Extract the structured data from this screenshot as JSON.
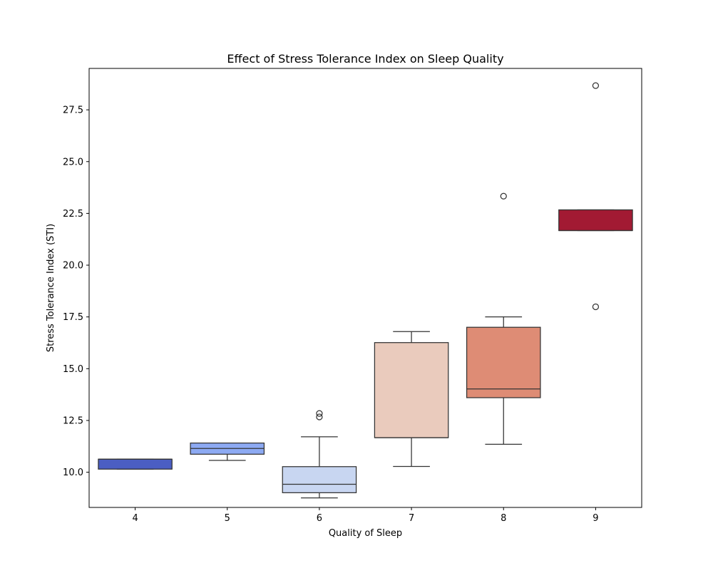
{
  "chart_data": {
    "type": "box",
    "title": "Effect of Stress Tolerance Index on Sleep Quality",
    "xlabel": "Quality of Sleep",
    "ylabel": "Stress Tolerance Index (STI)",
    "ylim": [
      8.3,
      29.5
    ],
    "yticks": [
      "10.0",
      "12.5",
      "15.0",
      "17.5",
      "20.0",
      "22.5",
      "25.0",
      "27.5"
    ],
    "grid": false,
    "categories": [
      "4",
      "5",
      "6",
      "7",
      "8",
      "9"
    ],
    "boxes": [
      {
        "category": "4",
        "whislo": 10.15,
        "q1": 10.15,
        "med": 10.63,
        "q3": 10.63,
        "whishi": 10.63,
        "fliers": [],
        "color": "#4b5ec3"
      },
      {
        "category": "5",
        "whislo": 10.57,
        "q1": 10.87,
        "med": 11.15,
        "q3": 11.41,
        "whishi": 11.41,
        "fliers": [],
        "color": "#8daaf3"
      },
      {
        "category": "6",
        "whislo": 8.76,
        "q1": 9.01,
        "med": 9.42,
        "q3": 10.27,
        "whishi": 11.71,
        "fliers": [
          12.67,
          12.84
        ],
        "color": "#c8d6f1"
      },
      {
        "category": "7",
        "whislo": 10.28,
        "q1": 11.67,
        "med": 11.67,
        "q3": 16.26,
        "whishi": 16.79,
        "fliers": [],
        "color": "#eacbbd"
      },
      {
        "category": "8",
        "whislo": 11.35,
        "q1": 13.6,
        "med": 14.02,
        "q3": 17.0,
        "whishi": 17.5,
        "fliers": [
          23.33
        ],
        "color": "#de8c75"
      },
      {
        "category": "9",
        "whislo": 21.67,
        "q1": 21.67,
        "med": 21.67,
        "q3": 22.67,
        "whishi": 22.67,
        "fliers": [
          17.99,
          28.67
        ],
        "color": "#a21a33"
      }
    ]
  }
}
